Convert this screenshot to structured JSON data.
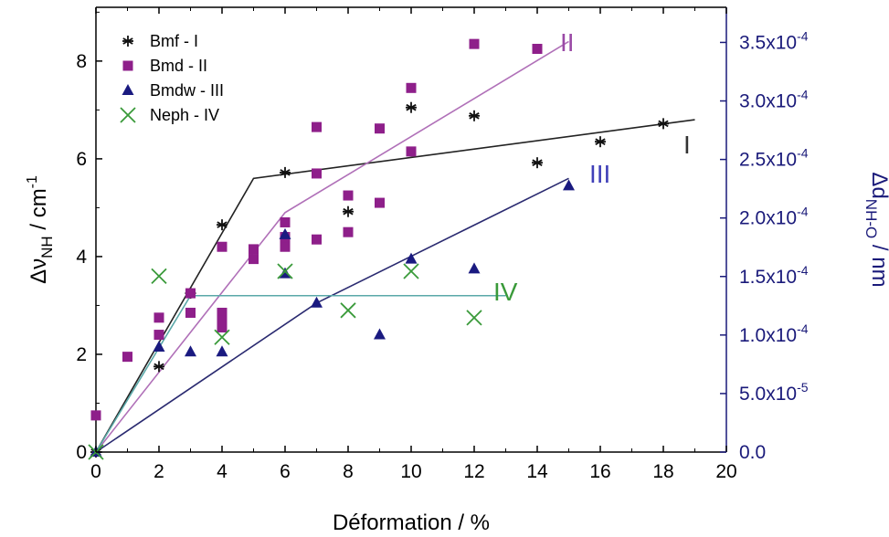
{
  "chart_data": {
    "type": "scatter",
    "xlabel": "Déformation / %",
    "ylabel_left": {
      "base": "Δν",
      "sub": "NH",
      "unit": " / cm",
      "sup": "-1"
    },
    "ylabel_right": {
      "base": "Δd",
      "sub": "NH-O",
      "unit": " / nm"
    },
    "xlim": [
      0,
      20
    ],
    "ylim_left": [
      0,
      9.1
    ],
    "ylim_right": [
      0,
      0.00038
    ],
    "x_ticks": [
      "0",
      "2",
      "4",
      "6",
      "8",
      "10",
      "12",
      "14",
      "16",
      "18",
      "20"
    ],
    "y_ticks_left": [
      "0",
      "2",
      "4",
      "6",
      "8"
    ],
    "y_ticks_right": [
      {
        "mant": "0.0",
        "exp": ""
      },
      {
        "mant": "5.0x10",
        "exp": "-5"
      },
      {
        "mant": "1.0x10",
        "exp": "-4"
      },
      {
        "mant": "1.5x10",
        "exp": "-4"
      },
      {
        "mant": "2.0x10",
        "exp": "-4"
      },
      {
        "mant": "2.5x10",
        "exp": "-4"
      },
      {
        "mant": "3.0x10",
        "exp": "-4"
      },
      {
        "mant": "3.5x10",
        "exp": "-4"
      }
    ],
    "y_ticks_right_values": [
      0,
      5e-05,
      0.0001,
      0.00015,
      0.0002,
      0.00025,
      0.0003,
      0.00035
    ],
    "legend_position": "top-left",
    "series": [
      {
        "name": "Bmf - I",
        "marker": "asterisk",
        "color": "#111111",
        "x": [
          0,
          2,
          3,
          4,
          6,
          8,
          10,
          12,
          14,
          16,
          18
        ],
        "y": [
          0,
          1.75,
          3.25,
          4.65,
          5.72,
          4.92,
          7.05,
          6.88,
          5.92,
          6.35,
          6.72
        ],
        "fit_x": [
          0,
          5,
          19
        ],
        "fit_y": [
          0,
          5.6,
          6.8
        ],
        "fit_color": "#222222",
        "line_label": "I",
        "line_label_color": "#333333"
      },
      {
        "name": "Bmd - II",
        "marker": "square",
        "color": "#8e1f8a",
        "x": [
          0,
          1,
          2,
          2,
          3,
          3,
          4,
          4,
          4,
          4,
          5,
          5,
          6,
          6,
          6,
          7,
          7,
          7,
          8,
          8,
          9,
          9,
          10,
          10,
          12,
          14
        ],
        "y": [
          0.75,
          1.95,
          2.75,
          2.4,
          3.25,
          2.85,
          4.2,
          2.85,
          2.7,
          2.55,
          4.15,
          3.95,
          4.7,
          4.2,
          4.4,
          6.65,
          5.7,
          4.35,
          5.25,
          4.5,
          6.62,
          5.1,
          7.45,
          6.15,
          8.35,
          8.25
        ],
        "fit_x": [
          0,
          6,
          15
        ],
        "fit_y": [
          0,
          4.9,
          8.4
        ],
        "fit_color": "#b070b8",
        "line_label": "II",
        "line_label_color": "#9a4aa6"
      },
      {
        "name": "Bmdw - III",
        "marker": "triangle",
        "color": "#1a1a80",
        "x": [
          0,
          2,
          3,
          4,
          6,
          6,
          7,
          9,
          10,
          12,
          15
        ],
        "y": [
          0,
          2.15,
          2.05,
          2.05,
          4.45,
          3.65,
          3.05,
          2.4,
          3.95,
          3.75,
          5.45
        ],
        "fit_x": [
          0,
          7,
          15
        ],
        "fit_y": [
          0,
          3.05,
          5.6
        ],
        "fit_color": "#2a2a70",
        "line_label": "III",
        "line_label_color": "#4040b8"
      },
      {
        "name": "Neph - IV",
        "marker": "x",
        "color": "#3a9a3a",
        "x": [
          0,
          2,
          4,
          6,
          8,
          10,
          12
        ],
        "y": [
          0,
          3.6,
          2.35,
          3.7,
          2.9,
          3.7,
          2.75
        ],
        "fit_x": [
          0,
          3,
          13
        ],
        "fit_y": [
          0,
          3.2,
          3.2
        ],
        "fit_color": "#5aa8a8",
        "line_label": "IV",
        "line_label_color": "#3a9a3a"
      }
    ],
    "axis_colors": {
      "left": "#000000",
      "right": "#1a1a7a"
    }
  }
}
